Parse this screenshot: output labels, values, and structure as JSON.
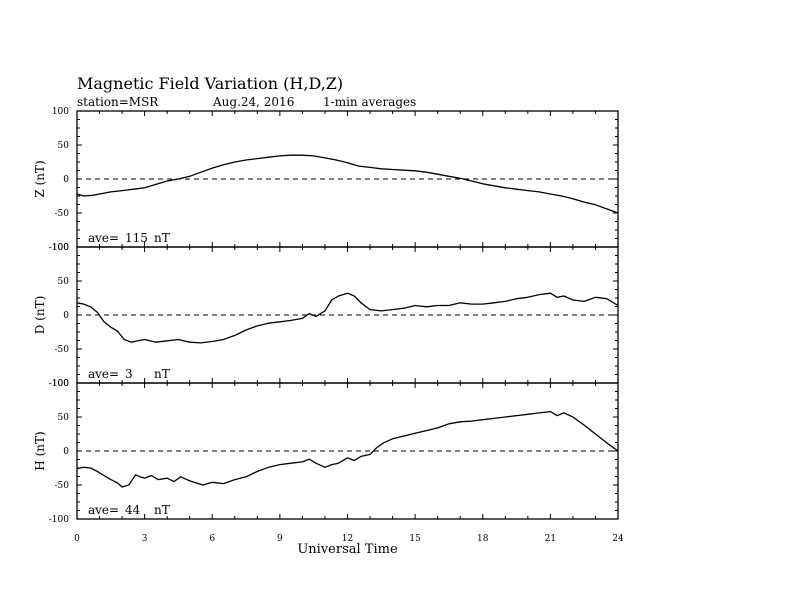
{
  "header": {
    "title": "Magnetic Field Variation (H,D,Z)",
    "station": "station=MSR",
    "date": "Aug.24, 2016",
    "averaging": "1-min averages"
  },
  "chart_data": [
    {
      "type": "line",
      "panel": "Z",
      "ylabel": "Z (nT)",
      "ylim": [
        -100,
        100
      ],
      "yticks": [
        -100,
        -50,
        0,
        50,
        100
      ],
      "xlim": [
        0,
        24
      ],
      "zero_line": "dashed",
      "average_label": "ave=",
      "average_value": "115",
      "average_unit": "nT",
      "series": [
        {
          "x": [
            0,
            0.3,
            0.7,
            1,
            1.5,
            2,
            2.5,
            3,
            3.5,
            4,
            4.5,
            5,
            5.5,
            6,
            6.5,
            7,
            7.5,
            8,
            8.5,
            9,
            9.5,
            10,
            10.5,
            11,
            11.5,
            12,
            12.5,
            13,
            13.5,
            14,
            14.5,
            15,
            15.5,
            16,
            16.5,
            17,
            17.5,
            18,
            18.5,
            19,
            19.5,
            20,
            20.5,
            21,
            21.5,
            22,
            22.5,
            23,
            23.5,
            24
          ],
          "y": [
            -22,
            -25,
            -24,
            -22,
            -19,
            -17,
            -15,
            -13,
            -8,
            -3,
            0,
            4,
            10,
            16,
            21,
            25,
            28,
            30,
            32,
            34,
            35,
            35,
            34,
            31,
            28,
            24,
            19,
            17,
            15,
            14,
            13,
            12,
            10,
            7,
            4,
            1,
            -3,
            -7,
            -10,
            -13,
            -15,
            -17,
            -19,
            -22,
            -25,
            -29,
            -34,
            -38,
            -44,
            -50
          ]
        }
      ]
    },
    {
      "type": "line",
      "panel": "D",
      "ylabel": "D (nT)",
      "ylim": [
        -100,
        100
      ],
      "yticks": [
        -100,
        -50,
        0,
        50,
        100
      ],
      "xlim": [
        0,
        24
      ],
      "zero_line": "dashed",
      "average_label": "ave=",
      "average_value": "3",
      "average_unit": "nT",
      "series": [
        {
          "x": [
            0,
            0.3,
            0.6,
            0.9,
            1.2,
            1.5,
            1.8,
            2.1,
            2.4,
            2.7,
            3,
            3.5,
            4,
            4.5,
            5,
            5.5,
            6,
            6.5,
            7,
            7.5,
            8,
            8.5,
            9,
            9.5,
            10,
            10.3,
            10.6,
            11,
            11.3,
            11.6,
            12,
            12.3,
            12.6,
            13,
            13.5,
            14,
            14.5,
            15,
            15.5,
            16,
            16.5,
            17,
            17.5,
            18,
            18.5,
            19,
            19.5,
            20,
            20.5,
            21,
            21.3,
            21.6,
            22,
            22.5,
            23,
            23.5,
            24
          ],
          "y": [
            18,
            16,
            12,
            4,
            -10,
            -18,
            -24,
            -36,
            -40,
            -38,
            -36,
            -40,
            -38,
            -36,
            -40,
            -41,
            -39,
            -36,
            -30,
            -22,
            -16,
            -12,
            -10,
            -8,
            -5,
            2,
            -2,
            6,
            22,
            28,
            32,
            28,
            18,
            8,
            6,
            8,
            10,
            14,
            12,
            14,
            14,
            18,
            16,
            16,
            18,
            20,
            24,
            26,
            30,
            32,
            26,
            28,
            22,
            20,
            26,
            24,
            14
          ]
        }
      ]
    },
    {
      "type": "line",
      "panel": "H",
      "ylabel": "H (nT)",
      "ylim": [
        -100,
        100
      ],
      "yticks": [
        -100,
        -50,
        0,
        50,
        100
      ],
      "xlim": [
        0,
        24
      ],
      "zero_line": "dashed",
      "average_label": "ave=",
      "average_value": "44",
      "average_unit": "nT",
      "series": [
        {
          "x": [
            0,
            0.3,
            0.6,
            0.9,
            1.2,
            1.5,
            1.8,
            2,
            2.3,
            2.6,
            2.8,
            3,
            3.3,
            3.6,
            4,
            4.3,
            4.6,
            5,
            5.3,
            5.6,
            6,
            6.5,
            7,
            7.5,
            8,
            8.5,
            9,
            9.5,
            10,
            10.3,
            10.6,
            11,
            11.3,
            11.6,
            12,
            12.3,
            12.6,
            13,
            13.3,
            13.6,
            14,
            14.5,
            15,
            15.5,
            16,
            16.5,
            17,
            17.5,
            18,
            18.5,
            19,
            19.5,
            20,
            20.5,
            21,
            21.3,
            21.6,
            22,
            22.5,
            23,
            23.5,
            24
          ],
          "y": [
            -26,
            -24,
            -25,
            -30,
            -36,
            -42,
            -47,
            -53,
            -50,
            -35,
            -38,
            -40,
            -36,
            -42,
            -40,
            -45,
            -38,
            -44,
            -47,
            -50,
            -46,
            -48,
            -42,
            -38,
            -30,
            -24,
            -20,
            -18,
            -16,
            -12,
            -18,
            -24,
            -20,
            -18,
            -10,
            -14,
            -8,
            -5,
            5,
            12,
            18,
            22,
            26,
            30,
            34,
            40,
            43,
            44,
            46,
            48,
            50,
            52,
            54,
            56,
            58,
            52,
            56,
            50,
            38,
            25,
            12,
            0
          ]
        }
      ]
    }
  ],
  "x_axis": {
    "label": "Universal Time",
    "ticks": [
      0,
      3,
      6,
      9,
      12,
      15,
      18,
      21,
      24
    ]
  }
}
